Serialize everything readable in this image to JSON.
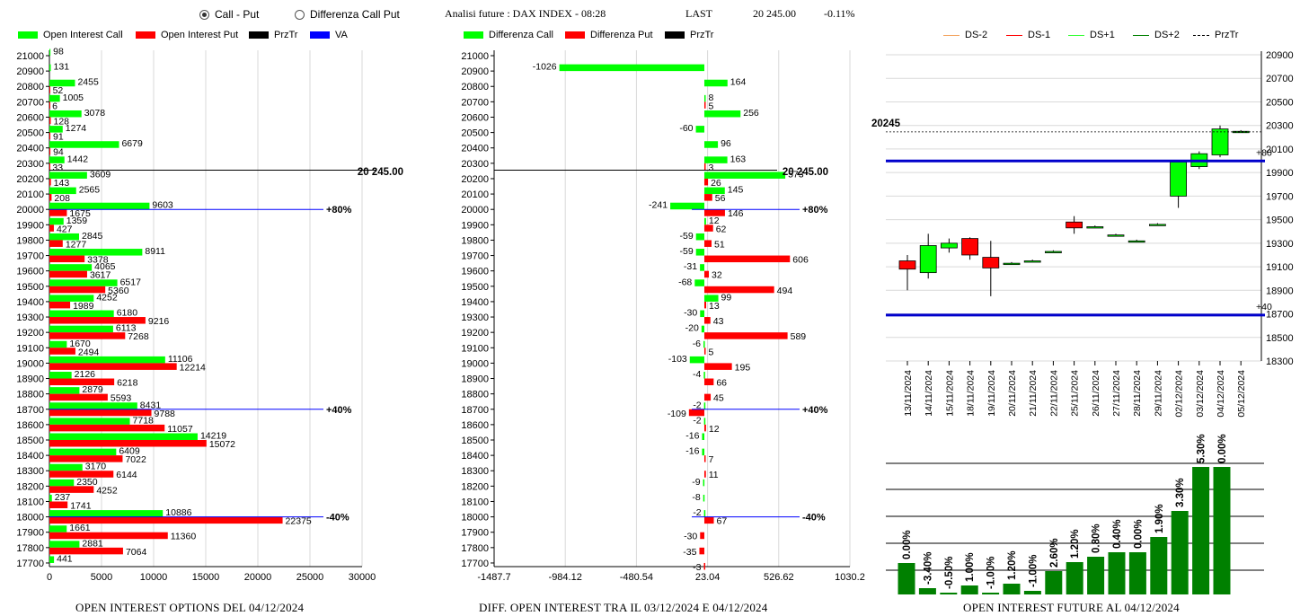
{
  "controls": {
    "radio_call_put": "Call - Put",
    "radio_diff": "Differenza Call Put",
    "selected": "call_put"
  },
  "header": {
    "title": "Analisi future : DAX INDEX - 08:28",
    "last_label": "LAST",
    "last_value": "20 245.00",
    "change": "-0.11%"
  },
  "legends": {
    "oi": [
      {
        "label": "Open Interest Call",
        "color": "#00ff00"
      },
      {
        "label": "Open Interest Put",
        "color": "#ff0000"
      },
      {
        "label": "PrzTr",
        "color": "#000000"
      },
      {
        "label": "VA",
        "color": "#0000ff"
      }
    ],
    "diff": [
      {
        "label": "Differenza Call",
        "color": "#00ff00"
      },
      {
        "label": "Differenza Put",
        "color": "#ff0000"
      },
      {
        "label": "PrzTr",
        "color": "#000000"
      }
    ],
    "future": [
      {
        "label": "DS-2",
        "color": "#f4a460",
        "style": "solid"
      },
      {
        "label": "DS-1",
        "color": "#ff0000",
        "style": "solid"
      },
      {
        "label": "DS+1",
        "color": "#33ff33",
        "style": "solid"
      },
      {
        "label": "DS+2",
        "color": "#008000",
        "style": "solid"
      },
      {
        "label": "PrzTr",
        "color": "#000000",
        "style": "dashed"
      }
    ]
  },
  "footers": {
    "oi": "OPEN INTEREST OPTIONS DEL 04/12/2024",
    "diff": "DIFF. OPEN INTEREST TRA IL 03/12/2024 E 04/12/2024",
    "future": "OPEN INTEREST FUTURE AL 04/12/2024"
  },
  "chart_data": [
    {
      "id": "oi",
      "type": "bar",
      "orientation": "horizontal",
      "categories": [
        "21000",
        "20900",
        "20800",
        "20700",
        "20600",
        "20500",
        "20400",
        "20300",
        "20200",
        "20100",
        "20000",
        "19900",
        "19800",
        "19700",
        "19600",
        "19500",
        "19400",
        "19300",
        "19200",
        "19100",
        "19000",
        "18900",
        "18800",
        "18700",
        "18600",
        "18500",
        "18400",
        "18300",
        "18200",
        "18100",
        "18000",
        "17900",
        "17800",
        "17700"
      ],
      "series": [
        {
          "name": "Open Interest Call",
          "values": [
            98,
            131,
            2455,
            1005,
            3078,
            1274,
            6679,
            1442,
            3609,
            2565,
            9603,
            1359,
            2845,
            8911,
            4065,
            6517,
            4252,
            6180,
            6113,
            1670,
            11106,
            2126,
            2879,
            8431,
            7718,
            14219,
            6409,
            3170,
            2350,
            237,
            10886,
            1661,
            2881,
            441
          ]
        },
        {
          "name": "Open Interest Put",
          "values": [
            0,
            0,
            52,
            6,
            128,
            91,
            94,
            33,
            143,
            208,
            1675,
            427,
            1277,
            3378,
            3617,
            5360,
            1989,
            9216,
            7268,
            2494,
            12214,
            6218,
            5593,
            9788,
            11057,
            15072,
            7022,
            6144,
            4252,
            1741,
            22375,
            11360,
            7064,
            0
          ]
        }
      ],
      "xlim": [
        0,
        30000
      ],
      "xticks": [
        "0",
        "5000",
        "10000",
        "15000",
        "20000",
        "25000",
        "30000"
      ],
      "reference_lines": [
        {
          "label": "20 245.00",
          "level": "20245.00",
          "color": "#000000"
        },
        {
          "label": "+80%",
          "category": "20000",
          "color": "#0000ff"
        },
        {
          "label": "+40%",
          "category": "18700",
          "color": "#0000ff"
        },
        {
          "label": "-40%",
          "category": "18000",
          "color": "#0000ff"
        }
      ]
    },
    {
      "id": "diff",
      "type": "bar",
      "orientation": "horizontal",
      "categories": [
        "21000",
        "20900",
        "20800",
        "20700",
        "20600",
        "20500",
        "20400",
        "20300",
        "20200",
        "20100",
        "20000",
        "19900",
        "19800",
        "19700",
        "19600",
        "19500",
        "19400",
        "19300",
        "19200",
        "19100",
        "19000",
        "18900",
        "18800",
        "18700",
        "18600",
        "18500",
        "18400",
        "18300",
        "18200",
        "18100",
        "18000",
        "17900",
        "17800",
        "17700"
      ],
      "series": [
        {
          "name": "Differenza Call",
          "values": [
            0,
            -1026,
            164,
            8,
            256,
            -60,
            96,
            163,
            573,
            145,
            -241,
            12,
            -59,
            -59,
            -31,
            -68,
            99,
            -30,
            -20,
            -6,
            -103,
            -4,
            0,
            -2,
            -2,
            -16,
            -16,
            0,
            -9,
            -8,
            -2,
            0,
            0,
            0
          ]
        },
        {
          "name": "Differenza Put",
          "values": [
            0,
            0,
            0,
            5,
            0,
            0,
            0,
            3,
            26,
            56,
            146,
            62,
            51,
            606,
            32,
            494,
            13,
            43,
            589,
            5,
            195,
            66,
            45,
            -109,
            12,
            0,
            7,
            11,
            0,
            0,
            67,
            -30,
            -35,
            -3
          ]
        }
      ],
      "xlim": [
        -1487.7,
        1030.2
      ],
      "xticks": [
        "-1487.7",
        "-984.12",
        "-480.54",
        "23.04",
        "526.62",
        "1030.2"
      ],
      "reference_lines": [
        {
          "label": "20 245.00",
          "level": "20245.00",
          "color": "#000000"
        },
        {
          "label": "+80%",
          "category": "20000",
          "color": "#0000ff"
        },
        {
          "label": "+40%",
          "category": "18700",
          "color": "#0000ff"
        },
        {
          "label": "-40%",
          "category": "18000",
          "color": "#0000ff"
        }
      ]
    },
    {
      "id": "candles",
      "type": "candlestick",
      "x": [
        "13/11/2024",
        "14/11/2024",
        "15/11/2024",
        "18/11/2024",
        "19/11/2024",
        "20/11/2024",
        "21/11/2024",
        "22/11/2024",
        "25/11/2024",
        "26/11/2024",
        "27/11/2024",
        "28/11/2024",
        "29/11/2024",
        "02/12/2024",
        "03/12/2024",
        "04/12/2024",
        "05/12/2024"
      ],
      "ohlc": [
        [
          19150,
          19200,
          18900,
          19080
        ],
        [
          19050,
          19380,
          19000,
          19280
        ],
        [
          19260,
          19340,
          19220,
          19300
        ],
        [
          19340,
          19350,
          19160,
          19200
        ],
        [
          19180,
          19320,
          18850,
          19090
        ],
        [
          19130,
          19140,
          19120,
          19130
        ],
        [
          19150,
          19160,
          19140,
          19150
        ],
        [
          19230,
          19240,
          19220,
          19230
        ],
        [
          19480,
          19530,
          19380,
          19430
        ],
        [
          19440,
          19450,
          19430,
          19440
        ],
        [
          19370,
          19380,
          19360,
          19370
        ],
        [
          19320,
          19330,
          19310,
          19320
        ],
        [
          19460,
          19470,
          19450,
          19460
        ],
        [
          19700,
          20000,
          19600,
          19990
        ],
        [
          19950,
          20080,
          19930,
          20060
        ],
        [
          20050,
          20300,
          20030,
          20270
        ],
        [
          20245,
          20260,
          20240,
          20250
        ]
      ],
      "ylim": [
        18300,
        20900
      ],
      "yticks": [
        "18300",
        "18500",
        "18700",
        "18900",
        "19100",
        "19300",
        "19500",
        "19700",
        "19900",
        "20100",
        "20300",
        "20500",
        "20700",
        "20900"
      ],
      "price_label": "20245",
      "price_level": 20245,
      "hlines": [
        {
          "value": 19998,
          "label": "+80",
          "color": "#0000cc"
        },
        {
          "value": 18690,
          "label": "+40",
          "color": "#0000cc"
        }
      ]
    },
    {
      "id": "oi_future",
      "type": "bar",
      "values": [
        0.0,
        -3.4,
        -0.5,
        1.0,
        -1.0,
        1.2,
        -1.0,
        2.6,
        1.2,
        0.8,
        0.4,
        0.0,
        1.9,
        3.3,
        5.3,
        0.0
      ],
      "labels": [
        "0.00%",
        "-3.40%",
        "-0.50%",
        "1.00%",
        "-1.00%",
        "1.20%",
        "-1.00%",
        "2.60%",
        "1.20%",
        "0.80%",
        "0.40%",
        "0.00%",
        "1.90%",
        "3.30%",
        "5.30%",
        "0.00%"
      ],
      "heights": [
        35,
        7,
        2,
        10,
        2,
        12,
        4,
        26,
        36,
        42,
        47,
        47,
        64,
        93,
        142,
        142
      ],
      "color": "#008000"
    }
  ]
}
